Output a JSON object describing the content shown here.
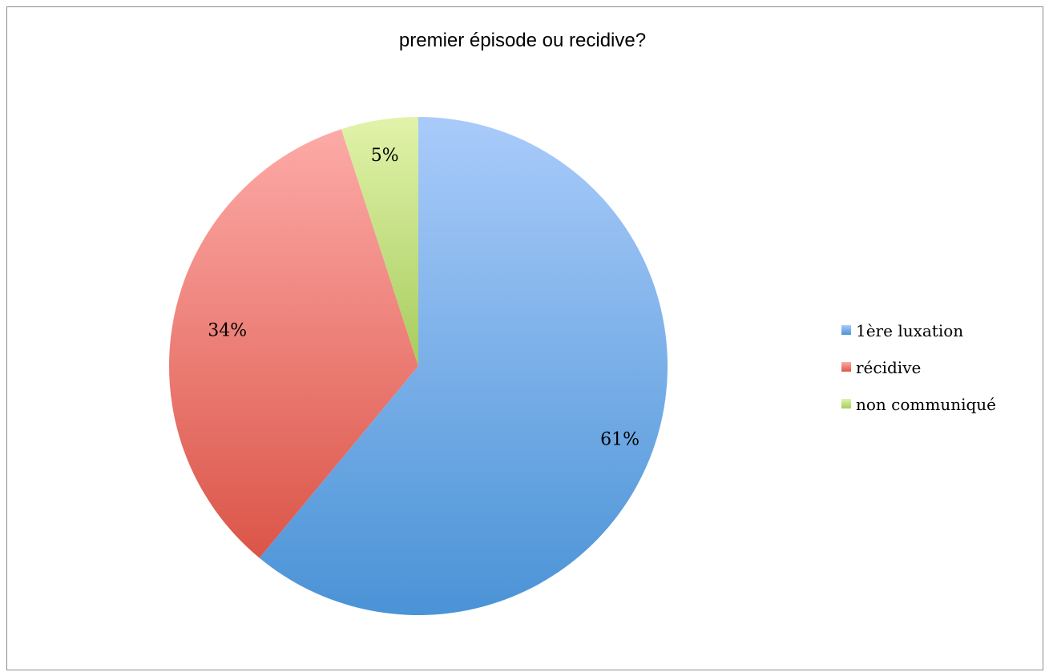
{
  "chart_data": {
    "type": "pie",
    "title": "premier épisode ou recidive?",
    "categories": [
      "1ère luxation",
      "récidive",
      "non communiqué"
    ],
    "values": [
      61,
      34,
      5
    ],
    "labels": [
      "61%",
      "34%",
      "5%"
    ],
    "colors": [
      "#5b9bd5",
      "#e8736a",
      "#a8cc68"
    ],
    "legend": "right",
    "start_angle": "12 o'clock, clockwise"
  }
}
